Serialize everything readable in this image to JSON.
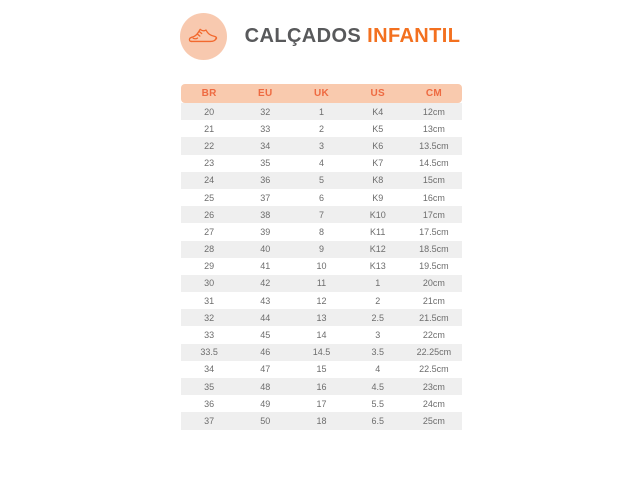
{
  "header": {
    "icon": "sneaker-icon",
    "title": "CALÇADOS",
    "title_accent": "INFANTIL"
  },
  "colors": {
    "icon_circle_bg": "#f8c9af",
    "icon_stroke": "#f2692e",
    "title_gray": "#58595b",
    "title_accent_orange": "#f3701f",
    "table_header_bg": "#f9caae",
    "table_header_text": "#ee6a41",
    "row_alt_bg": "#efefef",
    "row_bg": "#ffffff",
    "cell_text": "#6d6d6d",
    "page_bg": "#ffffff"
  },
  "table": {
    "columns": [
      "BR",
      "EU",
      "UK",
      "US",
      "CM"
    ],
    "rows": [
      [
        "20",
        "32",
        "1",
        "K4",
        "12cm"
      ],
      [
        "21",
        "33",
        "2",
        "K5",
        "13cm"
      ],
      [
        "22",
        "34",
        "3",
        "K6",
        "13.5cm"
      ],
      [
        "23",
        "35",
        "4",
        "K7",
        "14.5cm"
      ],
      [
        "24",
        "36",
        "5",
        "K8",
        "15cm"
      ],
      [
        "25",
        "37",
        "6",
        "K9",
        "16cm"
      ],
      [
        "26",
        "38",
        "7",
        "K10",
        "17cm"
      ],
      [
        "27",
        "39",
        "8",
        "K11",
        "17.5cm"
      ],
      [
        "28",
        "40",
        "9",
        "K12",
        "18.5cm"
      ],
      [
        "29",
        "41",
        "10",
        "K13",
        "19.5cm"
      ],
      [
        "30",
        "42",
        "11",
        "1",
        "20cm"
      ],
      [
        "31",
        "43",
        "12",
        "2",
        "21cm"
      ],
      [
        "32",
        "44",
        "13",
        "2.5",
        "21.5cm"
      ],
      [
        "33",
        "45",
        "14",
        "3",
        "22cm"
      ],
      [
        "33.5",
        "46",
        "14.5",
        "3.5",
        "22.25cm"
      ],
      [
        "34",
        "47",
        "15",
        "4",
        "22.5cm"
      ],
      [
        "35",
        "48",
        "16",
        "4.5",
        "23cm"
      ],
      [
        "36",
        "49",
        "17",
        "5.5",
        "24cm"
      ],
      [
        "37",
        "50",
        "18",
        "6.5",
        "25cm"
      ]
    ]
  }
}
